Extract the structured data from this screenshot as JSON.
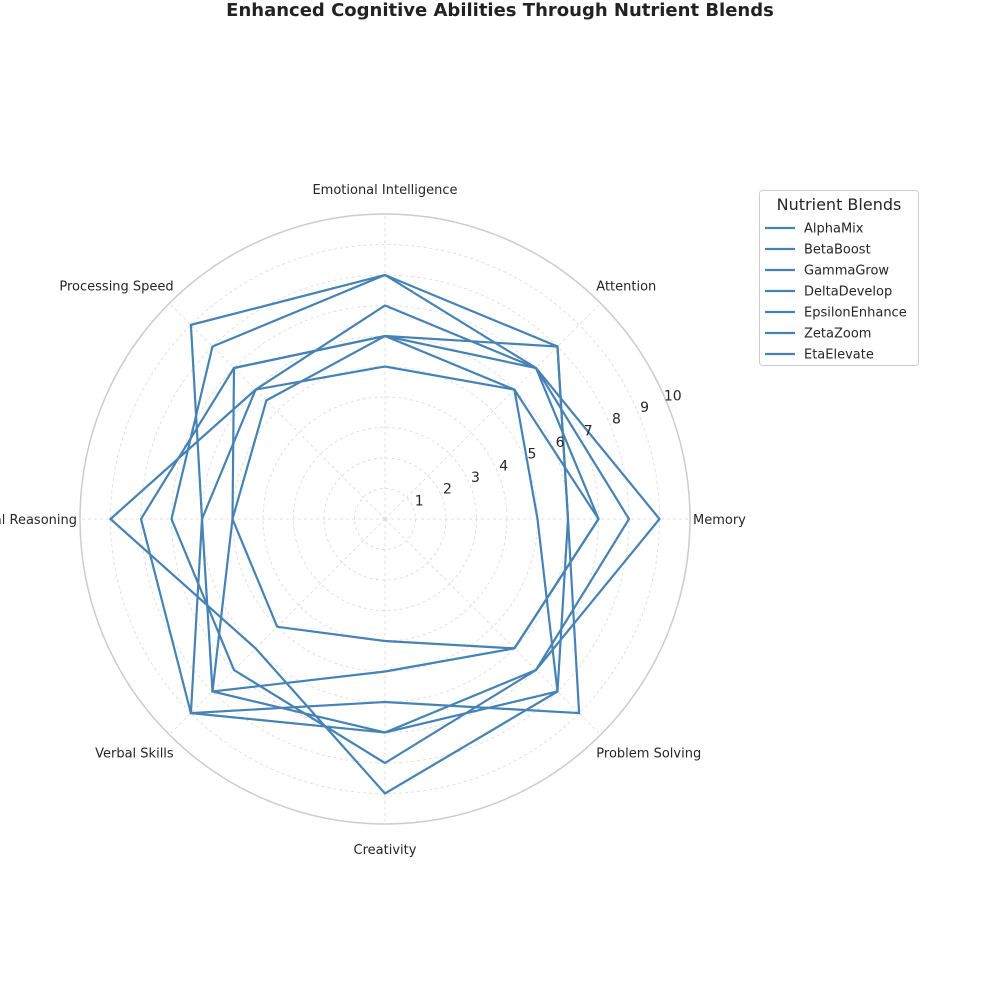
{
  "chart_data": {
    "type": "radar",
    "title": "Enhanced Cognitive Abilities Through Nutrient Blends",
    "axes": [
      "Memory",
      "Attention",
      "Emotional Intelligence",
      "Processing Speed",
      "Logical Reasoning",
      "Verbal Skills",
      "Creativity",
      "Problem Solving"
    ],
    "rlim": [
      0,
      10
    ],
    "r_ticks": [
      1,
      2,
      3,
      4,
      5,
      6,
      7,
      8,
      9,
      10
    ],
    "grid": true,
    "series_color": "#4682b4",
    "legend": {
      "title": "Nutrient Blends",
      "placement": "upper-right-outside"
    },
    "series": [
      {
        "name": "AlphaMix",
        "values": [
          7.0,
          6.0,
          6.0,
          5.5,
          5.0,
          5.0,
          4.0,
          6.0
        ]
      },
      {
        "name": "BetaBoost",
        "values": [
          8.0,
          7.0,
          7.0,
          6.0,
          6.0,
          8.0,
          7.0,
          7.0
        ]
      },
      {
        "name": "GammaGrow",
        "values": [
          6.0,
          8.0,
          6.0,
          7.0,
          8.0,
          9.0,
          6.0,
          9.0
        ]
      },
      {
        "name": "DeltaDevelop",
        "values": [
          9.0,
          7.0,
          8.0,
          8.0,
          7.0,
          7.0,
          8.0,
          7.0
        ]
      },
      {
        "name": "EpsilonEnhance",
        "values": [
          5.0,
          6.0,
          5.0,
          6.0,
          9.0,
          6.0,
          9.0,
          8.0
        ]
      },
      {
        "name": "ZetaZoom",
        "values": [
          6.0,
          8.0,
          8.0,
          9.0,
          6.0,
          9.0,
          7.0,
          8.0
        ]
      },
      {
        "name": "EtaElevate",
        "values": [
          7.0,
          7.0,
          6.0,
          7.0,
          5.0,
          8.0,
          5.0,
          6.0
        ]
      }
    ]
  }
}
